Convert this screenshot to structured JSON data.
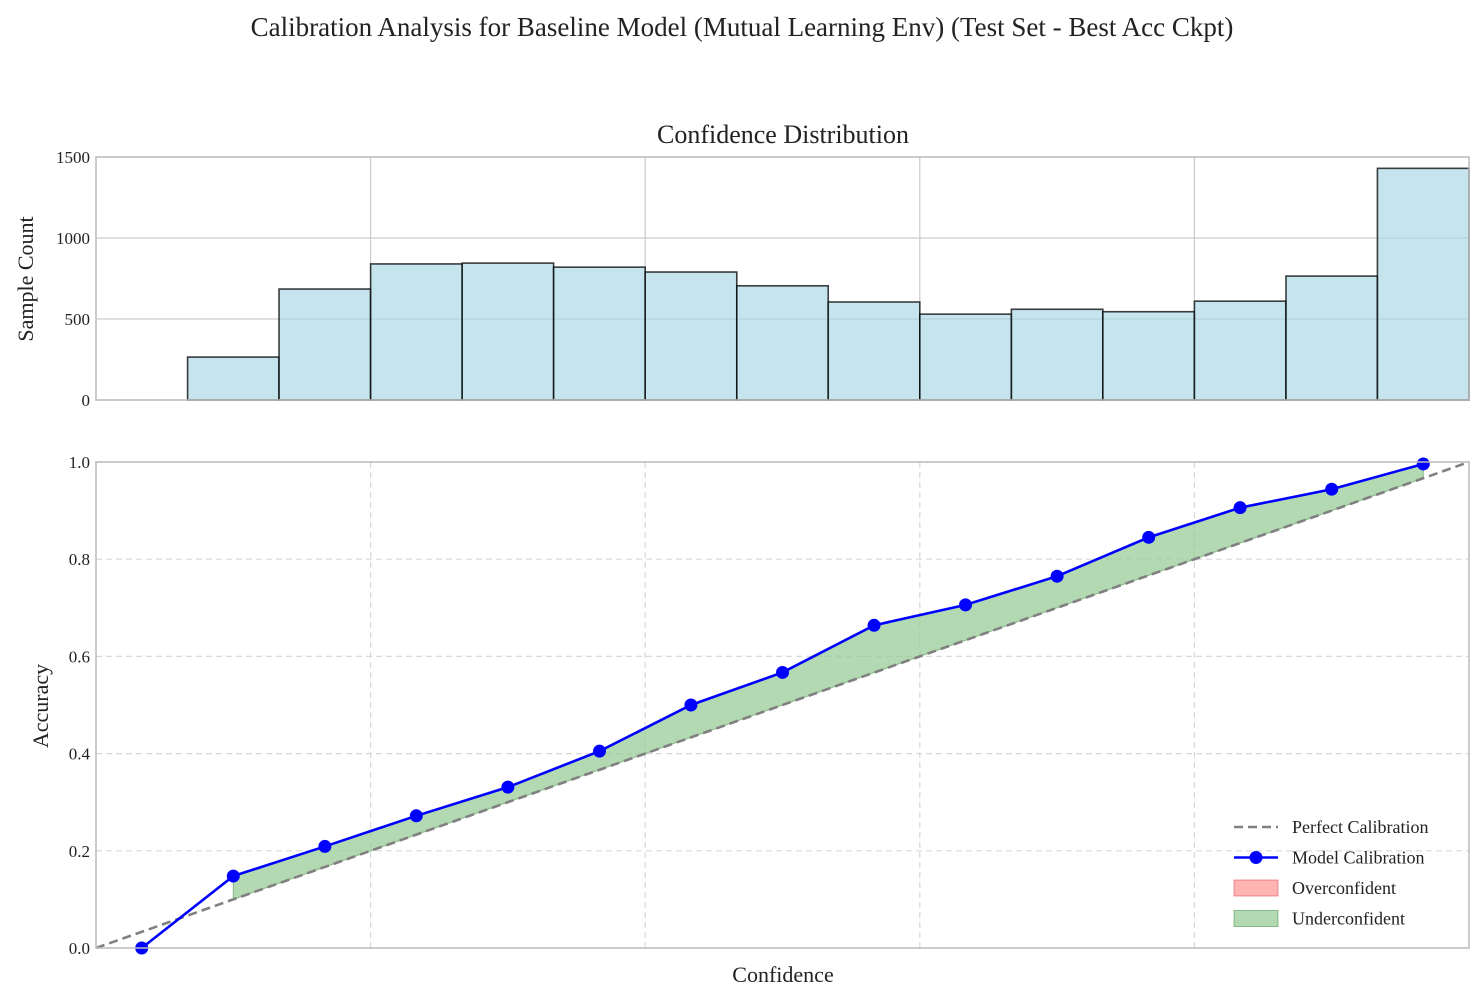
{
  "figure": {
    "title": "Calibration Analysis for Baseline Model (Mutual Learning Env) (Test Set - Best Acc Ckpt)"
  },
  "chart_data": [
    {
      "type": "bar",
      "title": "Confidence Distribution",
      "xlabel": "",
      "ylabel": "Sample Count",
      "xlim": [
        0.0,
        1.0
      ],
      "ylim": [
        0,
        1500
      ],
      "yticks": [
        0,
        500,
        1000,
        1500
      ],
      "grid": true,
      "bin_edges": [
        0.0,
        0.0667,
        0.1333,
        0.2,
        0.2667,
        0.3333,
        0.4,
        0.4667,
        0.5333,
        0.6,
        0.6667,
        0.7333,
        0.8,
        0.8667,
        0.9333,
        1.0
      ],
      "values": [
        0,
        265,
        685,
        840,
        845,
        820,
        790,
        705,
        605,
        530,
        560,
        545,
        610,
        765,
        1430
      ],
      "colors": {
        "fill": "#add8e6",
        "edge": "#000000"
      }
    },
    {
      "type": "line",
      "title": "",
      "xlabel": "Confidence",
      "ylabel": "Accuracy",
      "xlim": [
        0.0,
        1.0
      ],
      "ylim": [
        0.0,
        1.0
      ],
      "yticks": [
        0.0,
        0.2,
        0.4,
        0.6,
        0.8,
        1.0
      ],
      "ytick_labels": [
        "0.0",
        "0.2",
        "0.4",
        "0.6",
        "0.8",
        "1.0"
      ],
      "grid": true,
      "legend": "bottom-right",
      "series": [
        {
          "name": "Perfect Calibration",
          "style": "dashed",
          "color": "#808080",
          "x": [
            0.0,
            1.0
          ],
          "y": [
            0.0,
            1.0
          ]
        },
        {
          "name": "Model Calibration",
          "style": "line-marker",
          "color": "#0000ff",
          "x": [
            0.0333,
            0.1,
            0.1667,
            0.2333,
            0.3,
            0.3667,
            0.4333,
            0.5,
            0.5667,
            0.6333,
            0.7,
            0.7667,
            0.8333,
            0.9,
            0.9667
          ],
          "y": [
            0.0,
            0.148,
            0.209,
            0.272,
            0.331,
            0.405,
            0.5,
            0.567,
            0.664,
            0.706,
            0.765,
            0.845,
            0.906,
            0.944,
            0.996
          ]
        }
      ],
      "fill_regions": [
        {
          "name": "Overconfident",
          "color": "#ff9999"
        },
        {
          "name": "Underconfident",
          "color": "#99cc99"
        }
      ]
    }
  ]
}
